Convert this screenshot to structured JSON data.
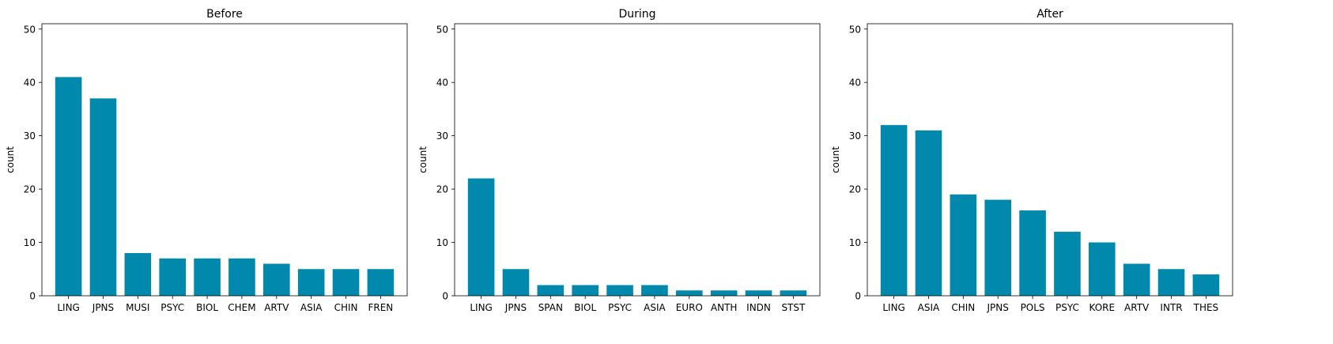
{
  "bar_color": "#0088AD",
  "chart_data": [
    {
      "type": "bar",
      "title": "Before",
      "xlabel": "",
      "ylabel": "count",
      "ylim": [
        0,
        51
      ],
      "yticks": [
        0,
        10,
        20,
        30,
        40,
        50
      ],
      "grid": false,
      "categories": [
        "LING",
        "JPNS",
        "MUSI",
        "PSYC",
        "BIOL",
        "CHEM",
        "ARTV",
        "ASIA",
        "CHIN",
        "FREN"
      ],
      "values": [
        41,
        37,
        8,
        7,
        7,
        7,
        6,
        5,
        5,
        5
      ]
    },
    {
      "type": "bar",
      "title": "During",
      "xlabel": "",
      "ylabel": "count",
      "ylim": [
        0,
        51
      ],
      "yticks": [
        0,
        10,
        20,
        30,
        40,
        50
      ],
      "grid": false,
      "categories": [
        "LING",
        "JPNS",
        "SPAN",
        "BIOL",
        "PSYC",
        "ASIA",
        "EURO",
        "ANTH",
        "INDN",
        "STST"
      ],
      "values": [
        22,
        5,
        2,
        2,
        2,
        2,
        1,
        1,
        1,
        1
      ]
    },
    {
      "type": "bar",
      "title": "After",
      "xlabel": "",
      "ylabel": "count",
      "ylim": [
        0,
        51
      ],
      "yticks": [
        0,
        10,
        20,
        30,
        40,
        50
      ],
      "grid": false,
      "categories": [
        "LING",
        "ASIA",
        "CHIN",
        "JPNS",
        "POLS",
        "PSYC",
        "KORE",
        "ARTV",
        "INTR",
        "THES"
      ],
      "values": [
        32,
        31,
        19,
        18,
        16,
        12,
        10,
        6,
        5,
        4
      ]
    }
  ]
}
